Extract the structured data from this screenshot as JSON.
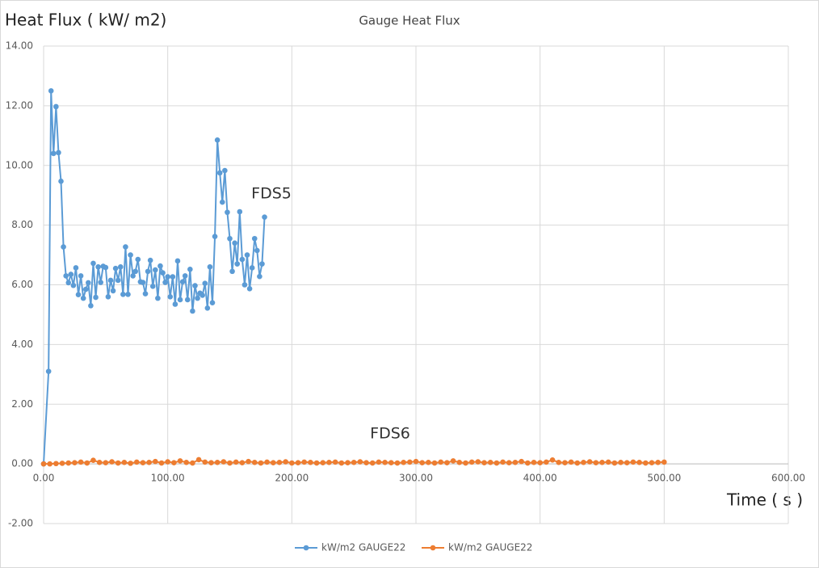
{
  "chart_data": {
    "type": "scatter-line",
    "title": "Gauge Heat Flux",
    "y_label": "Heat Flux ( kW/ m2)",
    "x_label": "Time ( s )",
    "annotations": [
      "FDS5",
      "FDS6"
    ],
    "grid": true,
    "legend": "bottom",
    "xlim": [
      0,
      600
    ],
    "ylim": [
      -2,
      14
    ],
    "xticks": [
      {
        "value": 0,
        "label": "0.00"
      },
      {
        "value": 100,
        "label": "100.00"
      },
      {
        "value": 200,
        "label": "200.00"
      },
      {
        "value": 300,
        "label": "300.00"
      },
      {
        "value": 400,
        "label": "400.00"
      },
      {
        "value": 500,
        "label": "500.00"
      },
      {
        "value": 600,
        "label": "600.00"
      }
    ],
    "yticks": [
      {
        "value": -2,
        "label": "-2.00"
      },
      {
        "value": 0,
        "label": "0.00"
      },
      {
        "value": 2,
        "label": "2.00"
      },
      {
        "value": 4,
        "label": "4.00"
      },
      {
        "value": 6,
        "label": "6.00"
      },
      {
        "value": 8,
        "label": "8.00"
      },
      {
        "value": 10,
        "label": "10.00"
      },
      {
        "value": 12,
        "label": "12.00"
      },
      {
        "value": 14,
        "label": "14.00"
      }
    ],
    "series": [
      {
        "name": "kW/m2 GAUGE22",
        "color": "#5b9bd5",
        "x": [
          0,
          4,
          6,
          8,
          10,
          12,
          14,
          16,
          18,
          20,
          22,
          24,
          26,
          28,
          30,
          32,
          34,
          36,
          38,
          40,
          42,
          44,
          46,
          48,
          50,
          52,
          54,
          56,
          58,
          60,
          62,
          64,
          66,
          68,
          70,
          72,
          74,
          76,
          78,
          80,
          82,
          84,
          86,
          88,
          90,
          92,
          94,
          96,
          98,
          100,
          102,
          104,
          106,
          108,
          110,
          112,
          114,
          116,
          118,
          120,
          122,
          124,
          126,
          128,
          130,
          132,
          134,
          136,
          138,
          140,
          142,
          144,
          146,
          148,
          150,
          152,
          154,
          156,
          158,
          160,
          162,
          164,
          166,
          168,
          170,
          172,
          174,
          176,
          178
        ],
        "values": [
          0,
          3.1,
          12.5,
          10.4,
          11.97,
          10.43,
          9.47,
          7.27,
          6.3,
          6.07,
          6.35,
          5.98,
          6.57,
          5.67,
          6.3,
          5.55,
          5.85,
          6.07,
          5.3,
          6.72,
          5.58,
          6.6,
          6.08,
          6.62,
          6.58,
          5.6,
          6.15,
          5.8,
          6.55,
          6.15,
          6.6,
          5.68,
          7.27,
          5.68,
          7.0,
          6.3,
          6.45,
          6.85,
          6.1,
          6.08,
          5.7,
          6.45,
          6.82,
          5.95,
          6.5,
          5.55,
          6.63,
          6.4,
          6.08,
          6.27,
          5.6,
          6.27,
          5.35,
          6.8,
          5.5,
          6.1,
          6.3,
          5.5,
          6.52,
          5.12,
          5.97,
          5.55,
          5.72,
          5.65,
          6.05,
          5.22,
          6.6,
          5.4,
          7.62,
          10.85,
          9.75,
          8.77,
          9.83,
          8.43,
          7.55,
          6.45,
          7.4,
          6.7,
          8.45,
          6.85,
          6.0,
          7.0,
          5.87,
          6.57,
          7.55,
          7.15,
          6.28,
          6.7,
          8.27
        ]
      },
      {
        "name": "kW/m2 GAUGE22",
        "color": "#ed7d31",
        "x": [
          0,
          5,
          10,
          15,
          20,
          25,
          30,
          35,
          40,
          45,
          50,
          55,
          60,
          65,
          70,
          75,
          80,
          85,
          90,
          95,
          100,
          105,
          110,
          115,
          120,
          125,
          130,
          135,
          140,
          145,
          150,
          155,
          160,
          165,
          170,
          175,
          180,
          185,
          190,
          195,
          200,
          205,
          210,
          215,
          220,
          225,
          230,
          235,
          240,
          245,
          250,
          255,
          260,
          265,
          270,
          275,
          280,
          285,
          290,
          295,
          300,
          305,
          310,
          315,
          320,
          325,
          330,
          335,
          340,
          345,
          350,
          355,
          360,
          365,
          370,
          375,
          380,
          385,
          390,
          395,
          400,
          405,
          410,
          415,
          420,
          425,
          430,
          435,
          440,
          445,
          450,
          455,
          460,
          465,
          470,
          475,
          480,
          485,
          490,
          495,
          500
        ],
        "values": [
          0,
          0,
          0.01,
          0.02,
          0.03,
          0.04,
          0.06,
          0.03,
          0.12,
          0.05,
          0.04,
          0.07,
          0.03,
          0.05,
          0.02,
          0.06,
          0.04,
          0.05,
          0.08,
          0.03,
          0.07,
          0.04,
          0.1,
          0.05,
          0.03,
          0.14,
          0.06,
          0.04,
          0.05,
          0.07,
          0.03,
          0.06,
          0.04,
          0.08,
          0.05,
          0.03,
          0.06,
          0.04,
          0.05,
          0.07,
          0.03,
          0.04,
          0.06,
          0.05,
          0.03,
          0.04,
          0.05,
          0.06,
          0.03,
          0.04,
          0.05,
          0.07,
          0.04,
          0.03,
          0.06,
          0.05,
          0.04,
          0.03,
          0.05,
          0.06,
          0.08,
          0.04,
          0.05,
          0.03,
          0.06,
          0.04,
          0.1,
          0.05,
          0.03,
          0.06,
          0.07,
          0.04,
          0.05,
          0.03,
          0.06,
          0.04,
          0.05,
          0.08,
          0.03,
          0.05,
          0.04,
          0.06,
          0.13,
          0.05,
          0.04,
          0.06,
          0.03,
          0.05,
          0.07,
          0.04,
          0.05,
          0.06,
          0.03,
          0.05,
          0.04,
          0.06,
          0.05,
          0.03,
          0.04,
          0.05,
          0.06
        ]
      }
    ]
  }
}
